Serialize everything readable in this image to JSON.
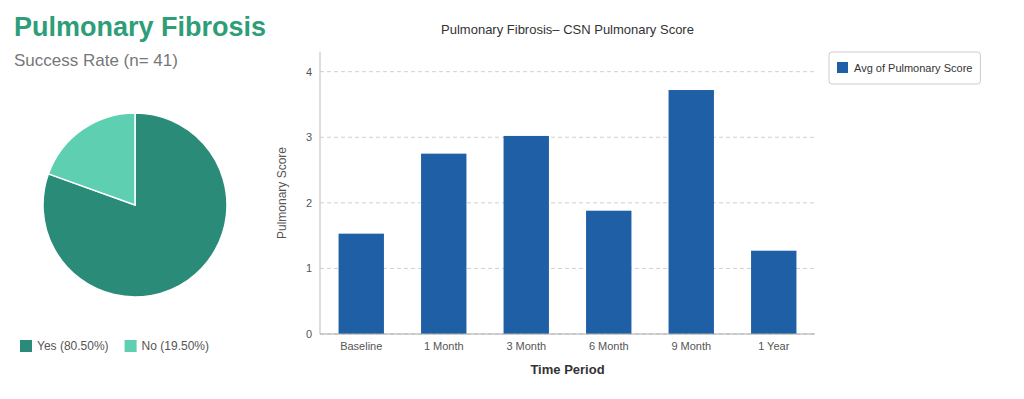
{
  "chart_data": [
    {
      "type": "pie",
      "title": "Pulmonary Fibrosis",
      "subtitle": "Success Rate (n= 41)",
      "categories": [
        "Yes (80.50%)",
        "No (19.50%)"
      ],
      "values": [
        80.5,
        19.5
      ],
      "colors": [
        "#2a8c78",
        "#5ecfb0"
      ],
      "legend": "bottom"
    },
    {
      "type": "bar",
      "title": "Pulmonary Fibrosis– CSN Pulmonary Score",
      "categories": [
        "Baseline",
        "1 Month",
        "3 Month",
        "6 Month",
        "9 Month",
        "1 Year"
      ],
      "series": [
        {
          "name": "Avg of Pulmonary Score",
          "color": "#1f5fa6",
          "values": [
            1.53,
            2.75,
            3.02,
            1.88,
            3.72,
            1.27
          ]
        }
      ],
      "xlabel": "Time Period",
      "ylabel": "Pulmonary Score",
      "ylim": [
        0,
        4.3
      ],
      "yticks": [
        0,
        1,
        2,
        3,
        4
      ],
      "grid": true,
      "legend": "right"
    }
  ]
}
